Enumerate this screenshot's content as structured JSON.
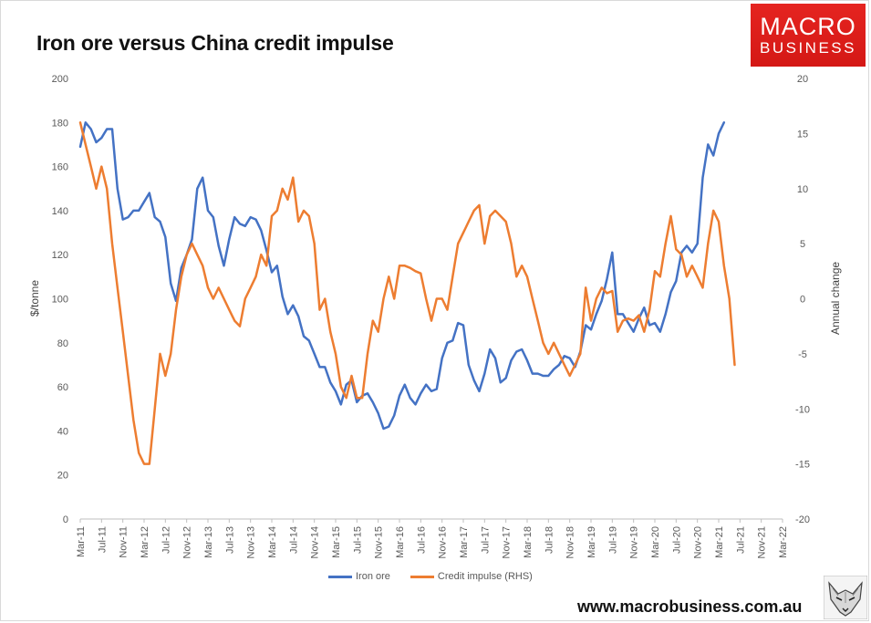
{
  "header": {
    "title": "Iron ore versus China credit impulse"
  },
  "logo": {
    "line1": "MACRO",
    "line2": "BUSINESS"
  },
  "footer": {
    "website": "www.macrobusiness.com.au"
  },
  "colors": {
    "iron_ore": "#4472c4",
    "credit_impulse": "#ed7d31",
    "logo_red": "#e02020"
  },
  "chart_data": {
    "type": "line",
    "title": "Iron ore versus China credit impulse",
    "ylabel": "$/tonne",
    "y2label": "Annual change",
    "ylim": [
      0,
      200
    ],
    "y2lim": [
      -20,
      20
    ],
    "y_ticks": [
      "0",
      "20",
      "40",
      "60",
      "80",
      "100",
      "120",
      "140",
      "160",
      "180",
      "200"
    ],
    "y2_ticks": [
      "-20",
      "-15",
      "-10",
      "-5",
      "0",
      "5",
      "10",
      "15",
      "20"
    ],
    "x_ticks": [
      "Mar-11",
      "Jul-11",
      "Nov-11",
      "Mar-12",
      "Jul-12",
      "Nov-12",
      "Mar-13",
      "Jul-13",
      "Nov-13",
      "Mar-14",
      "Jul-14",
      "Nov-14",
      "Mar-15",
      "Jul-15",
      "Nov-15",
      "Mar-16",
      "Jul-16",
      "Nov-16",
      "Mar-17",
      "Jul-17",
      "Nov-17",
      "Mar-18",
      "Jul-18",
      "Nov-18",
      "Mar-19",
      "Jul-19",
      "Nov-19",
      "Mar-20",
      "Jul-20",
      "Nov-20",
      "Mar-21",
      "Jul-21",
      "Nov-21",
      "Mar-22"
    ],
    "x_start": "Mar-11",
    "x_step_months": 1,
    "grid": false,
    "legend_position": "bottom",
    "series": [
      {
        "name": "Iron ore",
        "axis": "left",
        "values": [
          169,
          180,
          177,
          171,
          173,
          177,
          177,
          150,
          136,
          137,
          140,
          140,
          144,
          148,
          137,
          135,
          128,
          107,
          99,
          114,
          120,
          127,
          150,
          155,
          140,
          137,
          124,
          115,
          127,
          137,
          134,
          133,
          137,
          136,
          131,
          122,
          112,
          115,
          101,
          93,
          97,
          92,
          83,
          81,
          75,
          69,
          69,
          62,
          58,
          52,
          61,
          63,
          53,
          56,
          57,
          53,
          48,
          41,
          42,
          47,
          56,
          61,
          55,
          52,
          57,
          61,
          58,
          59,
          73,
          80,
          81,
          89,
          88,
          70,
          63,
          58,
          66,
          77,
          73,
          62,
          64,
          72,
          76,
          77,
          72,
          66,
          66,
          65,
          65,
          68,
          70,
          74,
          73,
          69,
          76,
          88,
          86,
          93,
          99,
          109,
          121,
          93,
          93,
          89,
          85,
          91,
          96,
          88,
          89,
          85,
          93,
          103,
          108,
          121,
          124,
          121,
          125,
          155,
          170,
          165,
          175,
          180
        ]
      },
      {
        "name": "Credit impulse (RHS)",
        "axis": "right",
        "values": [
          16,
          14,
          12,
          10,
          12,
          10,
          5,
          1,
          -3,
          -7,
          -11,
          -14,
          -15,
          -15,
          -10,
          -5,
          -7,
          -5,
          -1,
          2,
          4,
          5,
          4,
          3,
          1,
          0,
          1,
          0,
          -1,
          -2,
          -2.5,
          0,
          1,
          2,
          4,
          3,
          7.5,
          8,
          10,
          9,
          11,
          7,
          8,
          7.5,
          5,
          -1,
          0,
          -3,
          -5,
          -8,
          -9,
          -7,
          -9,
          -9,
          -5,
          -2,
          -3,
          0,
          2,
          0,
          3,
          3,
          2.8,
          2.5,
          2.3,
          0,
          -2,
          0,
          0,
          -1,
          2,
          5,
          6,
          7,
          8,
          8.5,
          5,
          7.5,
          8,
          7.5,
          7,
          5,
          2,
          3,
          2,
          0,
          -2,
          -4,
          -5,
          -4,
          -5,
          -6,
          -7,
          -6,
          -5,
          1,
          -2,
          0,
          1,
          0.5,
          0.7,
          -3,
          -2,
          -1.8,
          -2,
          -1.5,
          -3,
          -1,
          2.5,
          2,
          5,
          7.5,
          4.5,
          4,
          2,
          3,
          2,
          1,
          5,
          8,
          7,
          3,
          0,
          -6
        ]
      }
    ]
  }
}
